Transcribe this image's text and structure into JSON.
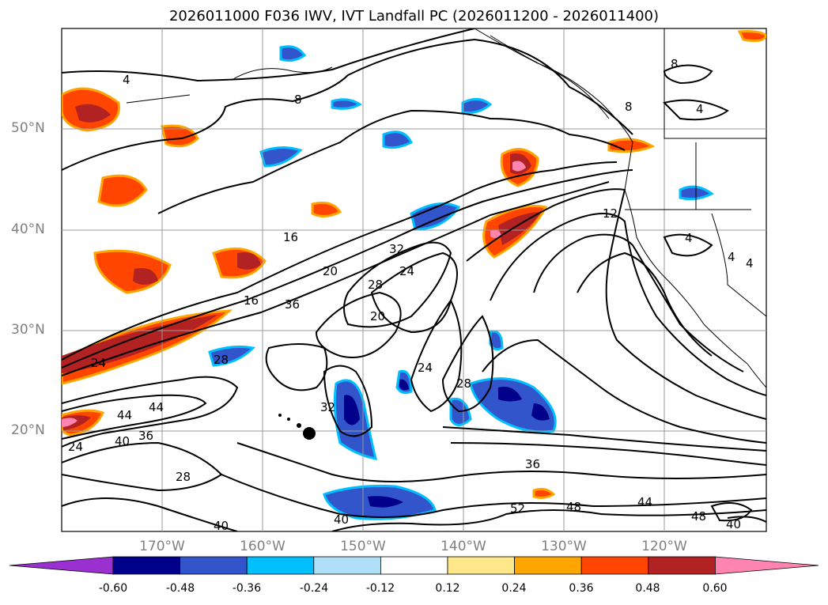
{
  "title": "2026011000 F036 IWV, IVT Landfall PC (2026011200 - 2026011400)",
  "lat_labels": [
    "50°N",
    "40°N",
    "30°N",
    "20°N"
  ],
  "lon_labels": [
    "170°W",
    "160°W",
    "150°W",
    "140°W",
    "130°W",
    "120°W"
  ],
  "contour_labels": [
    "4",
    "8",
    "8",
    "4",
    "8",
    "12",
    "16",
    "20",
    "32",
    "24",
    "28",
    "16",
    "36",
    "20",
    "28",
    "24",
    "24",
    "28",
    "44",
    "44",
    "40",
    "36",
    "32",
    "28",
    "36",
    "52",
    "48",
    "44",
    "48",
    "40",
    "40",
    "40",
    "24",
    "4",
    "4",
    "4"
  ],
  "colorbar": {
    "labels": [
      "-0.60",
      "-0.48",
      "-0.36",
      "-0.24",
      "-0.12",
      "0.12",
      "0.24",
      "0.36",
      "0.48",
      "0.60"
    ],
    "colors": [
      "#9b30d0",
      "#00008b",
      "#3355cc",
      "#00bfff",
      "#b0e0f8",
      "#ffffff",
      "#ffe88a",
      "#ffa500",
      "#ff4500",
      "#b22222",
      "#ff85b0"
    ]
  }
}
